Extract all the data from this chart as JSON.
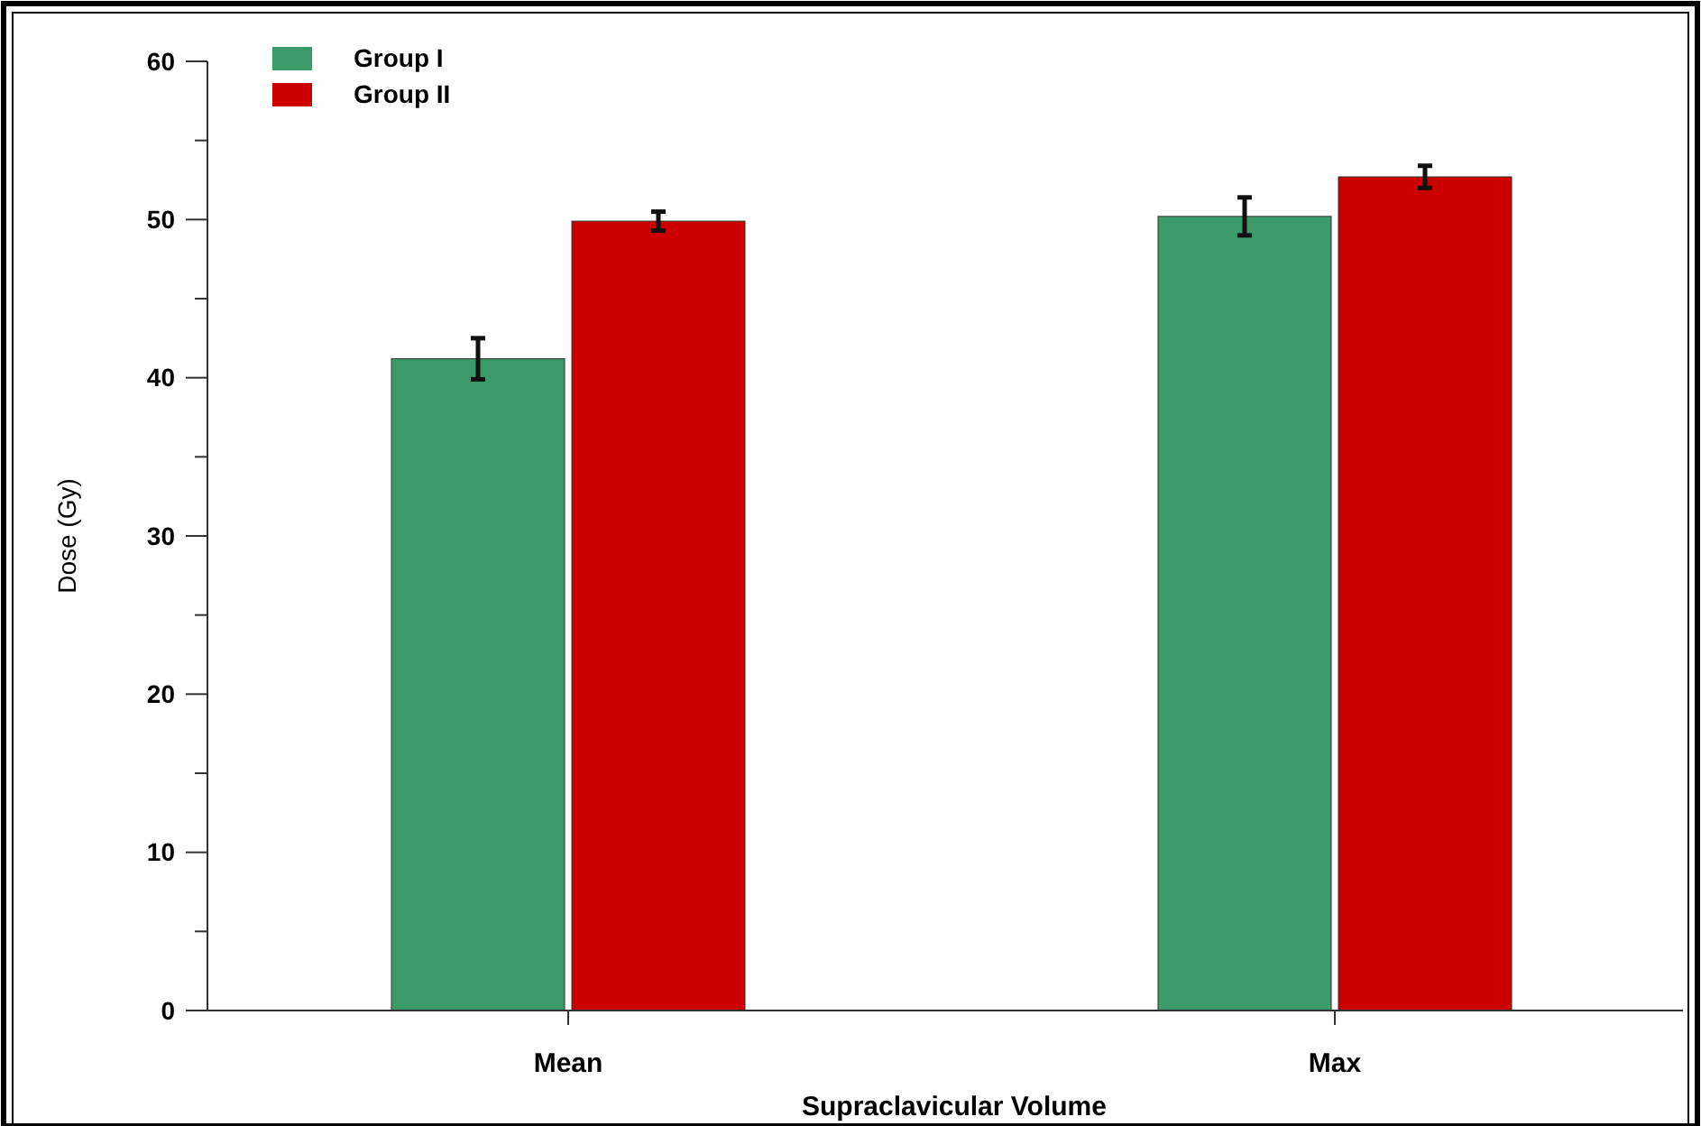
{
  "chart_data": {
    "type": "bar",
    "xlabel": "Supraclavicular Volume",
    "ylabel": "Dose (Gy)",
    "categories": [
      "Mean",
      "Max"
    ],
    "series": [
      {
        "name": "Group I",
        "color": "#3a9a6a",
        "values": [
          41.2,
          50.2
        ],
        "errors": [
          1.3,
          1.2
        ]
      },
      {
        "name": "Group II",
        "color": "#cc0000",
        "values": [
          49.9,
          52.7
        ],
        "errors": [
          0.6,
          0.7
        ]
      }
    ],
    "ylim": [
      0,
      60
    ],
    "yticks": [
      0,
      10,
      20,
      30,
      40,
      50,
      60
    ],
    "grid": false,
    "legend": "top left"
  }
}
